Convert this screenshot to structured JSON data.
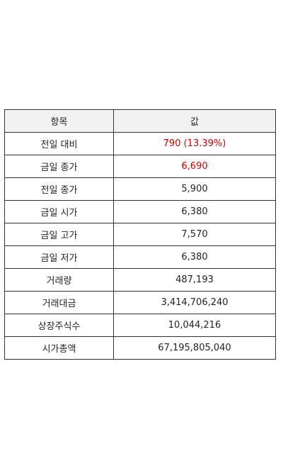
{
  "table": {
    "headers": {
      "item": "항목",
      "value": "값"
    },
    "rows": [
      {
        "label": "전일 대비",
        "value": "790 (13.39%)",
        "highlight": true
      },
      {
        "label": "금일 종가",
        "value": "6,690",
        "highlight": true
      },
      {
        "label": "전일 종가",
        "value": "5,900",
        "highlight": false
      },
      {
        "label": "금일 시가",
        "value": "6,380",
        "highlight": false
      },
      {
        "label": "금일 고가",
        "value": "7,570",
        "highlight": false
      },
      {
        "label": "금일 저가",
        "value": "6,380",
        "highlight": false
      },
      {
        "label": "거래량",
        "value": "487,193",
        "highlight": false
      },
      {
        "label": "거래대금",
        "value": "3,414,706,240",
        "highlight": false
      },
      {
        "label": "상장주식수",
        "value": "10,044,216",
        "highlight": false
      },
      {
        "label": "시가총액",
        "value": "67,195,805,040",
        "highlight": false
      }
    ]
  },
  "colors": {
    "highlight": "#d10000",
    "header_bg": "#f2f2f2",
    "border": "#333333"
  }
}
